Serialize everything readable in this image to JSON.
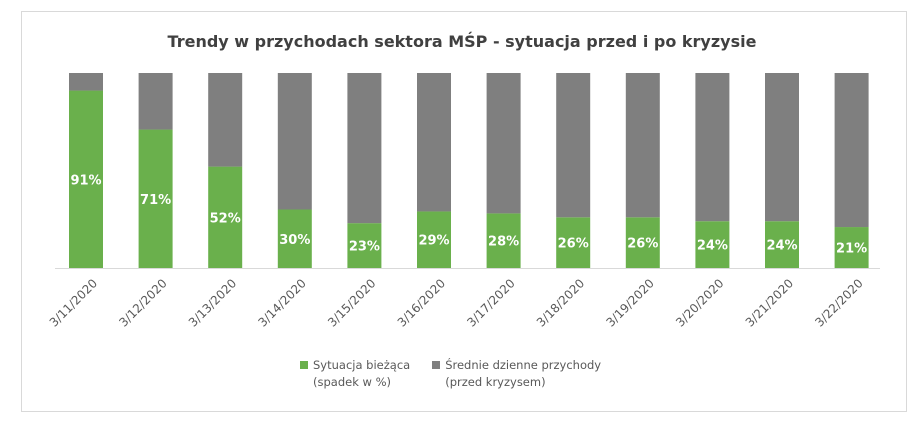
{
  "chart_data": {
    "type": "bar",
    "stacked": true,
    "title": "Trendy w przychodach sektora MŚP - sytuacja przed i po kryzysie",
    "xlabel": "",
    "ylabel": "",
    "ylim": [
      0,
      100
    ],
    "grid": false,
    "legend_position": "bottom",
    "categories": [
      "3/11/2020",
      "3/12/2020",
      "3/13/2020",
      "3/14/2020",
      "3/15/2020",
      "3/16/2020",
      "3/17/2020",
      "3/18/2020",
      "3/19/2020",
      "3/20/2020",
      "3/21/2020",
      "3/22/2020"
    ],
    "series": [
      {
        "name": "Sytuacja bieżąca\n(spadek  w %)",
        "color": "#6ab04c",
        "values": [
          91,
          71,
          52,
          30,
          23,
          29,
          28,
          26,
          26,
          24,
          24,
          21
        ],
        "data_labels": [
          "91%",
          "71%",
          "52%",
          "30%",
          "23%",
          "29%",
          "28%",
          "26%",
          "26%",
          "24%",
          "24%",
          "21%"
        ]
      },
      {
        "name": "Średnie dzienne przychody\n(przed kryzysem)",
        "color": "#7f7f7f",
        "values": [
          9,
          29,
          48,
          70,
          77,
          71,
          72,
          74,
          74,
          76,
          76,
          79
        ]
      }
    ]
  }
}
